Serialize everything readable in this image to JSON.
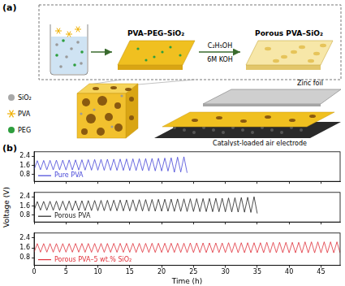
{
  "diagram": {
    "label": "(a)",
    "precursor": "PVA–PEG–SiO₂",
    "product": "Porous PVA–SiO₂",
    "treatment": [
      "C₂H₅OH",
      "6M KOH"
    ],
    "legend": [
      "SiO₂",
      "PVA",
      "PEG"
    ],
    "layers": {
      "top": "Zinc foil",
      "bottom": "Catalyst-loaded air electrode"
    }
  },
  "charts_panel": {
    "label": "(b)"
  },
  "chart_data": [
    {
      "type": "line",
      "legend": "lower left",
      "grid": false,
      "tick_labels": "y",
      "xlim": [
        0,
        48
      ],
      "xticks": [
        0,
        5,
        10,
        15,
        20,
        25,
        30,
        35,
        40,
        45
      ],
      "ylim": [
        0.2,
        2.8
      ],
      "yticks": [
        0.8,
        1.6,
        2.4
      ],
      "x": [
        0,
        0.5,
        1,
        1.5,
        2,
        2.5,
        3,
        3.5,
        4,
        4.5,
        5,
        5.5,
        6,
        6.5,
        7,
        7.5,
        8,
        8.5,
        9,
        9.5,
        10,
        10.5,
        11,
        11.5,
        12,
        12.5,
        13,
        13.5,
        14,
        14.5,
        15,
        15.5,
        16,
        16.5,
        17,
        17.5,
        18,
        18.5,
        19,
        19.5,
        20,
        20.5,
        21,
        21.5,
        22,
        22.5,
        23,
        23.5,
        24
      ],
      "series": [
        {
          "name": "Pure PVA",
          "color": "#4646d8",
          "values": [
            1.24,
            2.02,
            1.22,
            2.04,
            1.22,
            2.05,
            1.21,
            2.06,
            1.21,
            2.07,
            1.2,
            2.08,
            1.2,
            2.09,
            1.19,
            2.1,
            1.19,
            2.11,
            1.18,
            2.12,
            1.18,
            2.13,
            1.17,
            2.14,
            1.17,
            2.15,
            1.16,
            2.16,
            1.16,
            2.17,
            1.15,
            2.18,
            1.15,
            2.19,
            1.14,
            2.2,
            1.13,
            2.21,
            1.12,
            2.23,
            1.11,
            2.25,
            1.1,
            2.27,
            1.0,
            2.33,
            1.02,
            2.36,
            0.95
          ]
        }
      ]
    },
    {
      "type": "line",
      "legend": "lower left",
      "grid": false,
      "tick_labels": "y",
      "ylabel": "Voltage (V)",
      "xlim": [
        0,
        48
      ],
      "xticks": [
        0,
        5,
        10,
        15,
        20,
        25,
        30,
        35,
        40,
        45
      ],
      "ylim": [
        0.2,
        2.8
      ],
      "yticks": [
        0.8,
        1.6,
        2.4
      ],
      "x": [
        0,
        0.5,
        1,
        1.5,
        2,
        2.5,
        3,
        3.5,
        4,
        4.5,
        5,
        5.5,
        6,
        6.5,
        7,
        7.5,
        8,
        8.5,
        9,
        9.5,
        10,
        10.5,
        11,
        11.5,
        12,
        12.5,
        13,
        13.5,
        14,
        14.5,
        15,
        15.5,
        16,
        16.5,
        17,
        17.5,
        18,
        18.5,
        19,
        19.5,
        20,
        20.5,
        21,
        21.5,
        22,
        22.5,
        23,
        23.5,
        24,
        24.5,
        25,
        25.5,
        26,
        26.5,
        27,
        27.5,
        28,
        28.5,
        29,
        29.5,
        30,
        30.5,
        31,
        31.5,
        32,
        32.5,
        33,
        33.5,
        34,
        34.5,
        35
      ],
      "series": [
        {
          "name": "Porous PVA",
          "color": "#222222",
          "values": [
            1.24,
            2.0,
            1.24,
            2.01,
            1.23,
            2.02,
            1.23,
            2.03,
            1.22,
            2.04,
            1.22,
            2.05,
            1.21,
            2.06,
            1.21,
            2.07,
            1.2,
            2.08,
            1.2,
            2.09,
            1.19,
            2.1,
            1.19,
            2.11,
            1.18,
            2.12,
            1.18,
            2.13,
            1.17,
            2.14,
            1.17,
            2.15,
            1.16,
            2.16,
            1.16,
            2.17,
            1.15,
            2.18,
            1.15,
            2.19,
            1.14,
            2.2,
            1.14,
            2.21,
            1.13,
            2.22,
            1.13,
            2.23,
            1.12,
            2.24,
            1.12,
            2.25,
            1.11,
            2.26,
            1.11,
            2.27,
            1.1,
            2.28,
            1.1,
            2.29,
            1.09,
            2.31,
            1.08,
            2.33,
            1.07,
            2.35,
            1.06,
            2.37,
            1.04,
            2.42,
            0.95
          ]
        }
      ]
    },
    {
      "type": "line",
      "legend": "lower left",
      "grid": false,
      "xlabel": "Time (h)",
      "xlim": [
        0,
        48
      ],
      "xticks": [
        0,
        5,
        10,
        15,
        20,
        25,
        30,
        35,
        40,
        45
      ],
      "ylim": [
        0.2,
        2.8
      ],
      "yticks": [
        0.8,
        1.6,
        2.4
      ],
      "x": [
        0,
        0.5,
        1,
        1.5,
        2,
        2.5,
        3,
        3.5,
        4,
        4.5,
        5,
        5.5,
        6,
        6.5,
        7,
        7.5,
        8,
        8.5,
        9,
        9.5,
        10,
        10.5,
        11,
        11.5,
        12,
        12.5,
        13,
        13.5,
        14,
        14.5,
        15,
        15.5,
        16,
        16.5,
        17,
        17.5,
        18,
        18.5,
        19,
        19.5,
        20,
        20.5,
        21,
        21.5,
        22,
        22.5,
        23,
        23.5,
        24,
        24.5,
        25,
        25.5,
        26,
        26.5,
        27,
        27.5,
        28,
        28.5,
        29,
        29.5,
        30,
        30.5,
        31,
        31.5,
        32,
        32.5,
        33,
        33.5,
        34,
        34.5,
        35,
        35.5,
        36,
        36.5,
        37,
        37.5,
        38,
        38.5,
        39,
        39.5,
        40,
        40.5,
        41,
        41.5,
        42,
        42.5,
        43,
        43.5,
        44,
        44.5,
        45,
        45.5,
        46,
        46.5,
        47,
        47.5,
        48
      ],
      "series": [
        {
          "name": "Porous PVA–5 wt.% SiO₂",
          "color": "#e0303a",
          "values": [
            1.26,
            1.95,
            1.26,
            1.95,
            1.26,
            1.95,
            1.26,
            1.95,
            1.26,
            1.95,
            1.26,
            1.95,
            1.26,
            1.96,
            1.26,
            1.96,
            1.25,
            1.96,
            1.25,
            1.96,
            1.25,
            1.96,
            1.25,
            1.96,
            1.25,
            1.97,
            1.25,
            1.97,
            1.25,
            1.97,
            1.25,
            1.97,
            1.24,
            1.97,
            1.24,
            1.97,
            1.24,
            1.98,
            1.24,
            1.98,
            1.24,
            1.98,
            1.24,
            1.98,
            1.24,
            1.98,
            1.24,
            1.98,
            1.23,
            2.0,
            1.23,
            2.0,
            1.23,
            2.0,
            1.23,
            2.0,
            1.23,
            2.0,
            1.23,
            2.0,
            1.23,
            2.02,
            1.23,
            2.02,
            1.22,
            2.02,
            1.22,
            2.02,
            1.22,
            2.02,
            1.22,
            2.02,
            1.22,
            2.05,
            1.22,
            2.05,
            1.22,
            2.05,
            1.22,
            2.05,
            1.21,
            2.05,
            1.21,
            2.05,
            1.21,
            2.09,
            1.21,
            2.09,
            1.21,
            2.09,
            1.21,
            2.09,
            1.21,
            2.09,
            1.21,
            2.09,
            1.2
          ]
        }
      ]
    }
  ]
}
